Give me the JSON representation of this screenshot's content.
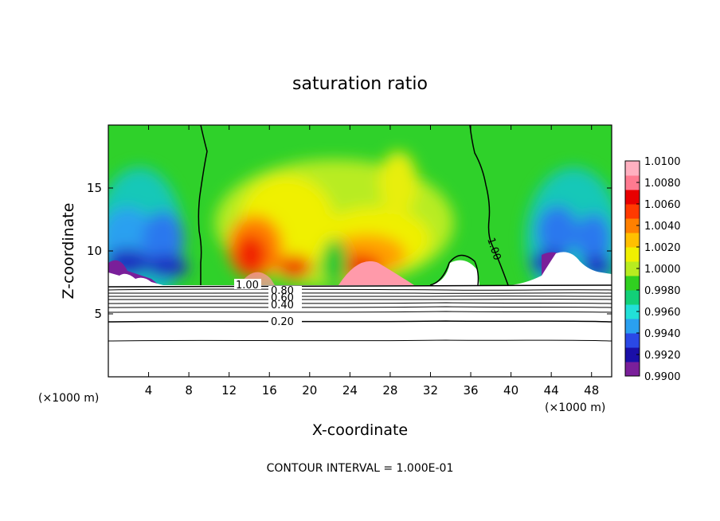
{
  "chart_data": {
    "type": "heatmap",
    "title": "saturation ratio",
    "xlabel": "X-coordinate",
    "ylabel": "Z-coordinate",
    "x_units": "(×1000 m)",
    "x_units_right": "(×1000 m)",
    "xlim": [
      0,
      50
    ],
    "ylim": [
      0,
      20
    ],
    "x_ticks": [
      4,
      8,
      12,
      16,
      20,
      24,
      28,
      32,
      36,
      40,
      44,
      48
    ],
    "y_ticks": [
      5,
      10,
      15
    ],
    "colorbar": {
      "min": 0.99,
      "max": 1.01,
      "ticks": [
        "1.0100",
        "1.0080",
        "1.0060",
        "1.0040",
        "1.0020",
        "1.0000",
        "0.9980",
        "0.9960",
        "0.9940",
        "0.9920",
        "0.9900"
      ],
      "colors": [
        "#7a1f9a",
        "#1a0fa8",
        "#2a48e6",
        "#2aa0f0",
        "#22e0d8",
        "#12d078",
        "#30d020",
        "#b8ec20",
        "#f0f000",
        "#ffc000",
        "#ff8000",
        "#ff3a00",
        "#e80000",
        "#ff7a90",
        "#ffb0c0"
      ]
    },
    "contour_lines": [
      {
        "label": "1.00",
        "level": 1.0
      },
      {
        "label": "0.80",
        "level": 0.8
      },
      {
        "label": "0.60",
        "level": 0.6
      },
      {
        "label": "0.40",
        "level": 0.4
      },
      {
        "label": "0.20",
        "level": 0.2
      }
    ],
    "contour_label_right": "1.00",
    "footnote": "CONTOUR INTERVAL = 1.000E-01"
  }
}
